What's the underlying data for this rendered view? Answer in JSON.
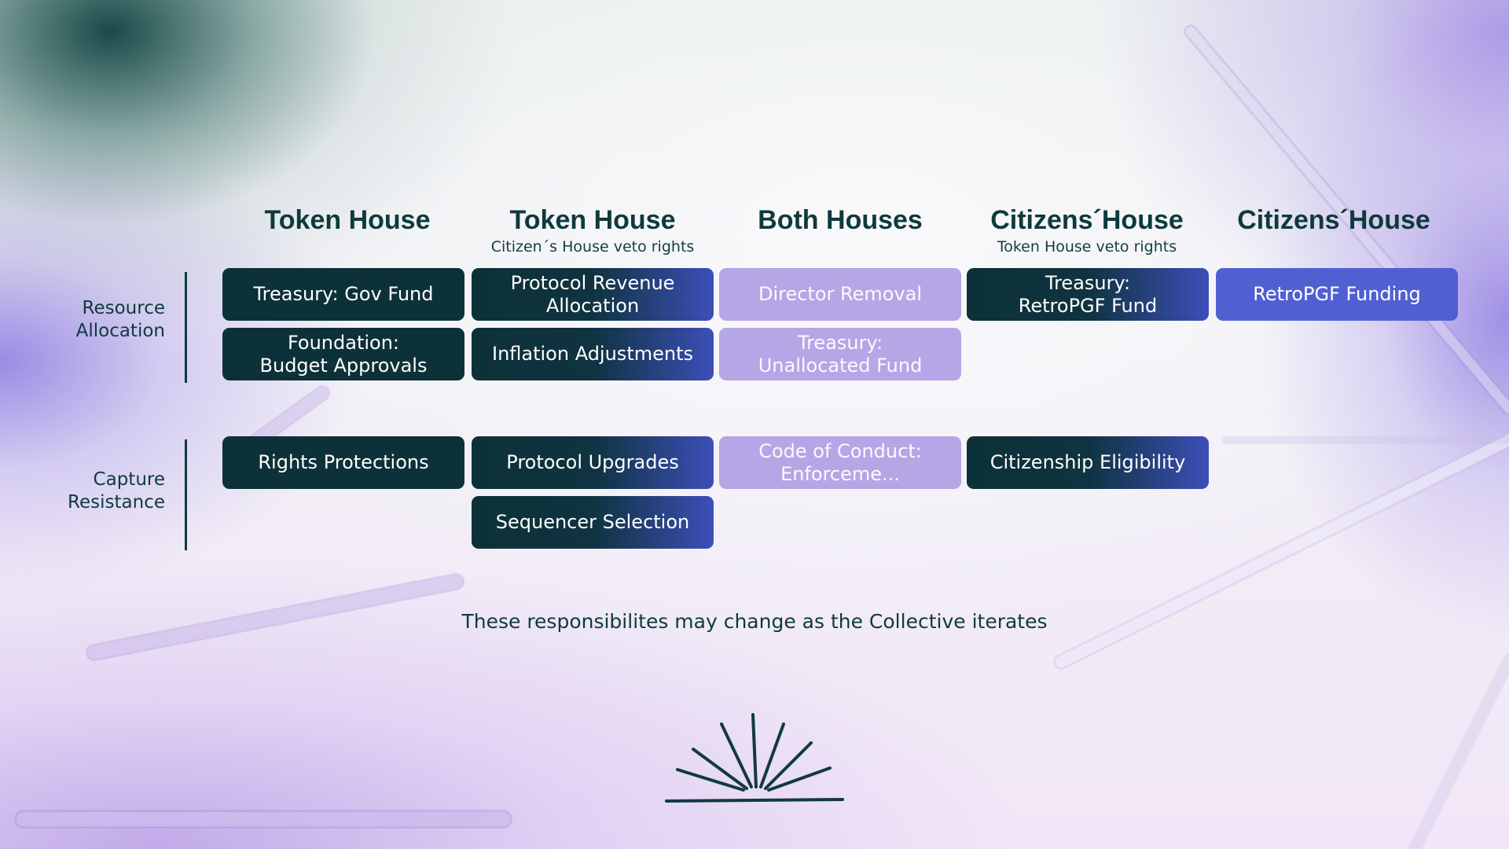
{
  "columns": [
    {
      "title": "Token House",
      "subtitle": ""
    },
    {
      "title": "Token House",
      "subtitle": "Citizen´s House veto rights"
    },
    {
      "title": "Both Houses",
      "subtitle": ""
    },
    {
      "title": "Citizens´House",
      "subtitle": "Token House veto rights"
    },
    {
      "title": "Citizens´House",
      "subtitle": ""
    }
  ],
  "rows": [
    {
      "label": "Resource\nAllocation"
    },
    {
      "label": "Capture\nResistance"
    }
  ],
  "cells": {
    "treasury_gov_fund": "Treasury: Gov Fund",
    "protocol_revenue_allocation": "Protocol Revenue\nAllocation",
    "director_removal": "Director Removal",
    "treasury_retropgf_fund": "Treasury:\nRetroPGF Fund",
    "retropgf_funding": "RetroPGF Funding",
    "foundation_budget_approvals": "Foundation:\nBudget Approvals",
    "inflation_adjustments": "Inflation Adjustments",
    "treasury_unallocated_fund": "Treasury:\nUnallocated Fund",
    "rights_protections": "Rights Protections",
    "protocol_upgrades": "Protocol Upgrades",
    "code_of_conduct": "Code of Conduct:\nEnforceme...",
    "citizenship_eligibility": "Citizenship Eligibility",
    "sequencer_selection": "Sequencer Selection"
  },
  "footnote": "These responsibilites may change as the Collective iterates",
  "icons": {
    "logo": "sunrise-icon"
  },
  "colors": {
    "dark_teal": "#0d3138",
    "lilac": "#b5a6e6",
    "royal_blue": "#5060d2",
    "text": "#0f3a3c"
  }
}
